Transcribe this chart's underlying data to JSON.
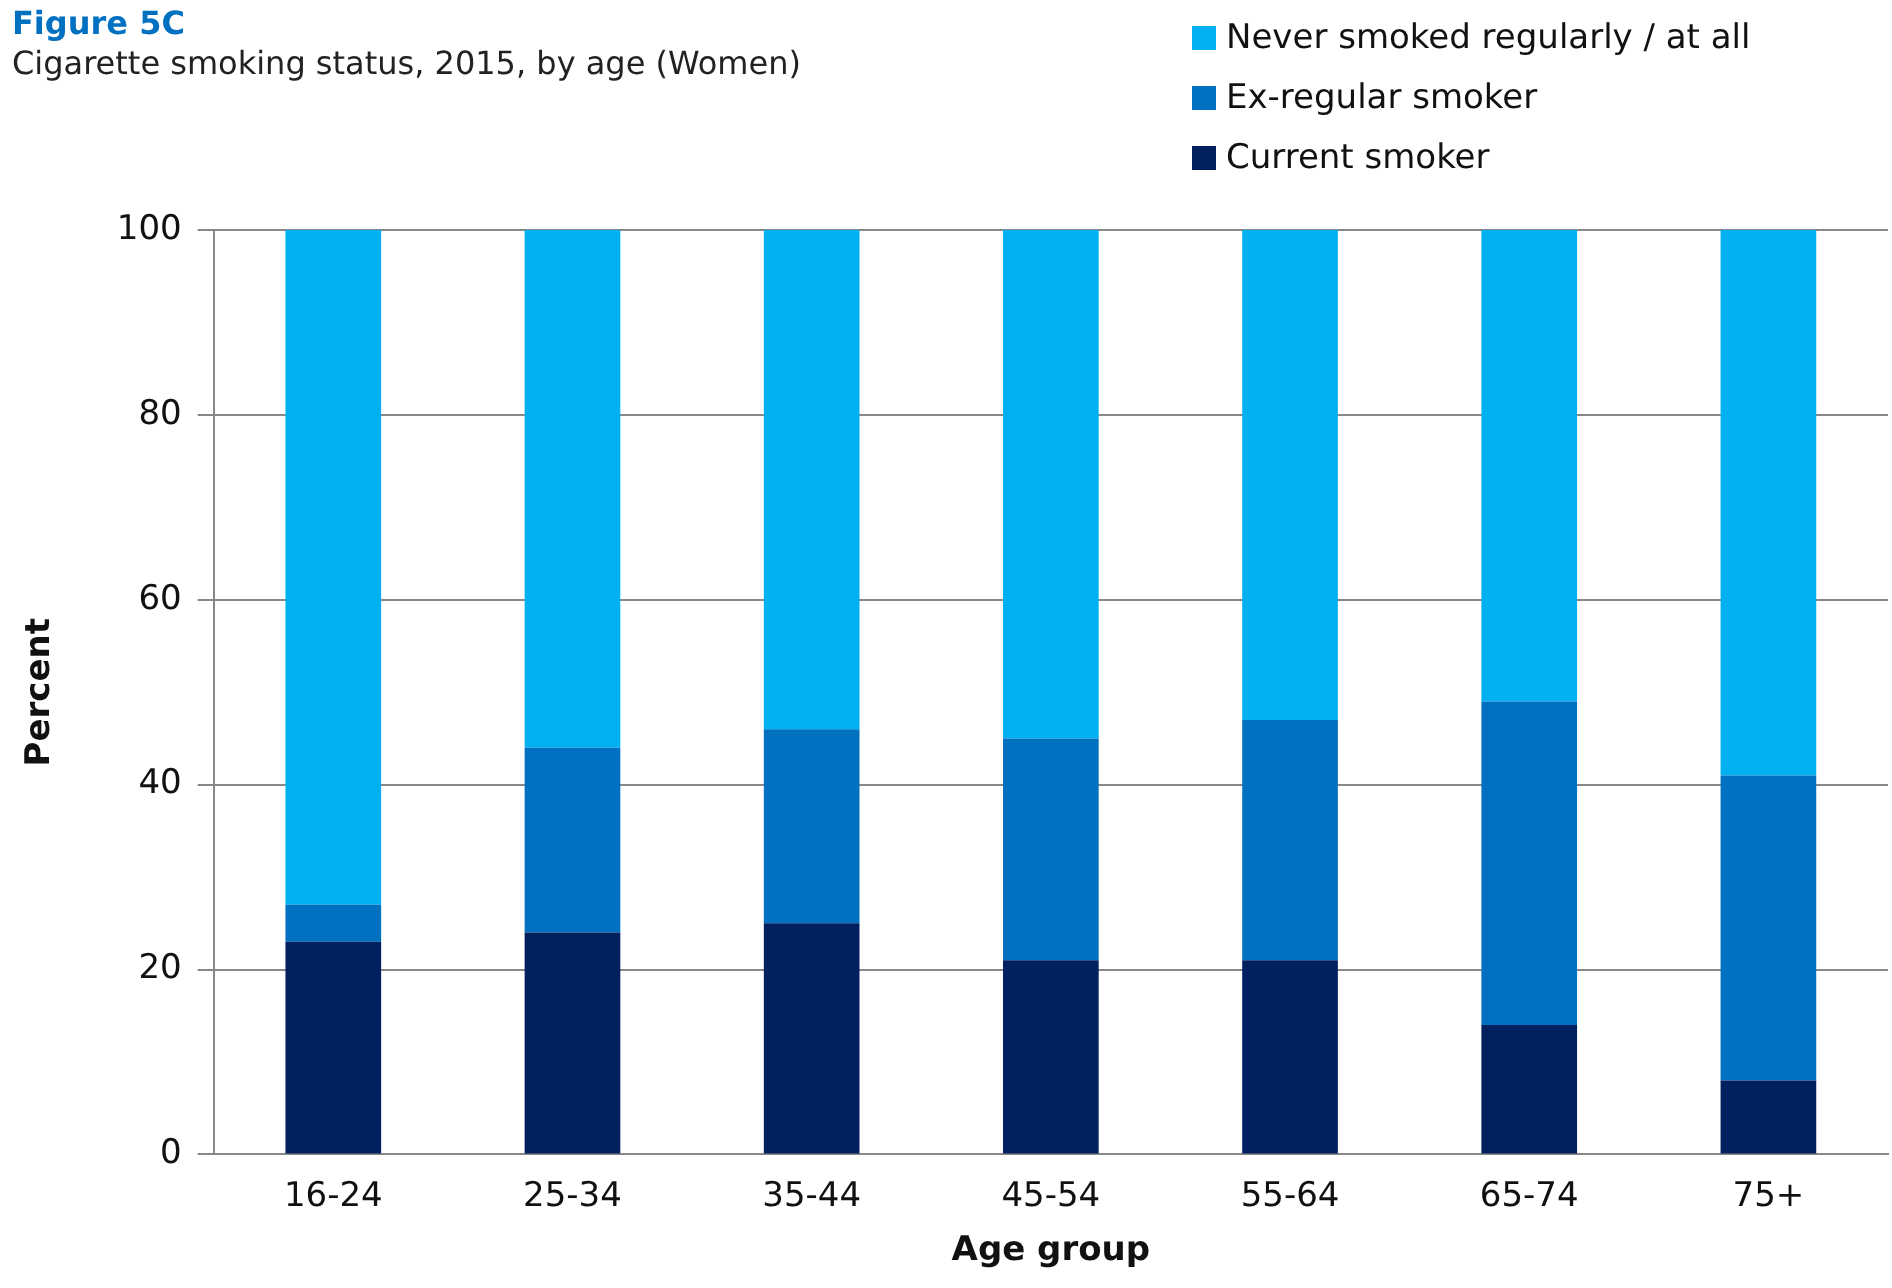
{
  "chart_data": {
    "type": "bar",
    "title": "Figure 5C",
    "subtitle": "Cigarette smoking status, 2015, by age (Women)",
    "xlabel": "Age group",
    "ylabel": "Percent",
    "categories": [
      "16-24",
      "25-34",
      "35-44",
      "45-54",
      "55-64",
      "65-74",
      "75+"
    ],
    "stacked": true,
    "series": [
      {
        "name": "Current smoker",
        "color": "#002060",
        "values": [
          23,
          24,
          25,
          21,
          21,
          14,
          8
        ]
      },
      {
        "name": "Ex-regular smoker",
        "color": "#0070c0",
        "values": [
          4,
          20,
          21,
          24,
          26,
          35,
          33
        ]
      },
      {
        "name": "Never smoked regularly / at all",
        "color": "#00b0f0",
        "values": [
          73,
          56,
          54,
          55,
          53,
          51,
          59
        ]
      }
    ],
    "ylim": [
      0,
      100
    ],
    "yticks": [
      0,
      20,
      40,
      60,
      80,
      100
    ],
    "grid": "y",
    "legend": "top right"
  }
}
